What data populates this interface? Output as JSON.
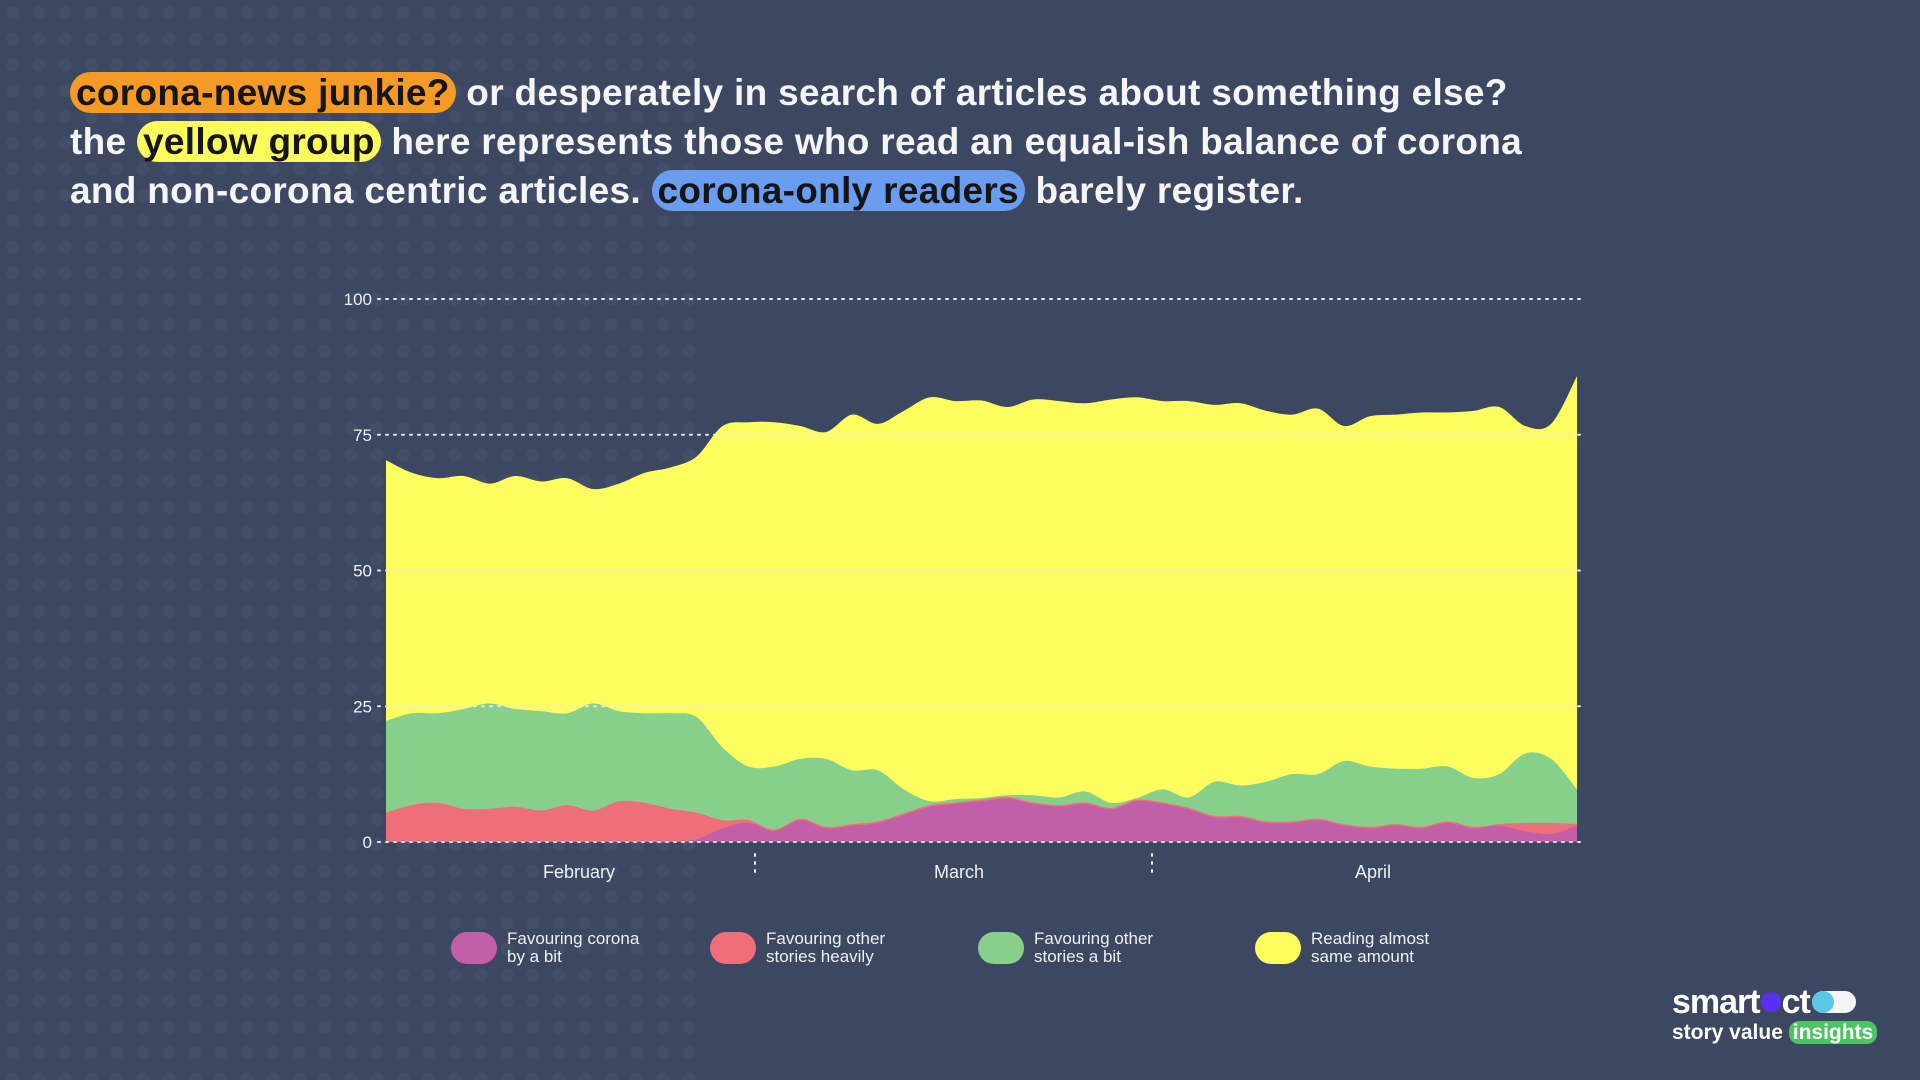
{
  "heading": {
    "line1_highlight": "corona-news junkie?",
    "line1_rest": " or desperately in search of articles about something else?",
    "line2_start": "the ",
    "line2_highlight": "yellow group",
    "line2_rest": " here represents those who read an equal-ish balance of corona",
    "line3_start": "and non-corona centric articles. ",
    "line3_highlight": "corona-only readers",
    "line3_rest": " barely register.",
    "highlight_colors": {
      "orange": "#f59a24",
      "yellow": "#fbfb5c",
      "blue": "#6a9cf0"
    }
  },
  "chart_data": {
    "type": "area",
    "stacked": true,
    "smoothed": true,
    "title": "",
    "xlabel": "",
    "ylabel": "",
    "ylim": [
      0,
      100
    ],
    "yticks": [
      "0",
      "25",
      "50",
      "75",
      "100"
    ],
    "grid": "horizontal dotted",
    "month_labels": [
      "February",
      "March",
      "April"
    ],
    "legend_position": "bottom",
    "x": [
      "Feb 1",
      "Feb 3",
      "Feb 5",
      "Feb 7",
      "Feb 9",
      "Feb 11",
      "Feb 13",
      "Feb 15",
      "Feb 17",
      "Feb 19",
      "Feb 21",
      "Feb 23",
      "Feb 25",
      "Feb 27",
      "Feb 29",
      "Mar 2",
      "Mar 4",
      "Mar 6",
      "Mar 8",
      "Mar 10",
      "Mar 12",
      "Mar 14",
      "Mar 16",
      "Mar 18",
      "Mar 20",
      "Mar 22",
      "Mar 24",
      "Mar 26",
      "Mar 28",
      "Mar 30",
      "Apr 1",
      "Apr 3",
      "Apr 5",
      "Apr 7",
      "Apr 9",
      "Apr 11",
      "Apr 13",
      "Apr 15",
      "Apr 17",
      "Apr 19",
      "Apr 21",
      "Apr 23",
      "Apr 25",
      "Apr 27",
      "Apr 29",
      "May 1",
      "May 3"
    ],
    "series": [
      {
        "name": "Favouring corona by a bit",
        "color": "#c15fa8",
        "values": [
          0,
          0,
          0,
          0,
          0,
          0,
          0,
          0,
          0,
          0,
          0,
          0,
          0.5,
          2.5,
          3.5,
          2.0,
          4.0,
          2.5,
          3.0,
          3.5,
          5.0,
          6.5,
          7.0,
          7.5,
          8.0,
          7.0,
          6.5,
          7.0,
          6.0,
          7.5,
          7.0,
          6.0,
          4.5,
          4.5,
          3.5,
          3.5,
          4.0,
          3.0,
          2.5,
          3.0,
          2.5,
          3.5,
          2.5,
          3.0,
          2.0,
          1.5,
          3.0
        ]
      },
      {
        "name": "Favouring other stories heavily",
        "color": "#ee6f79",
        "values": [
          5.4,
          6.8,
          7.2,
          6.1,
          6.1,
          6.5,
          5.8,
          6.8,
          5.8,
          7.5,
          7.2,
          6.1,
          4.9,
          1.5,
          0.5,
          0.3,
          0.3,
          0.3,
          0.3,
          0.3,
          0.3,
          0.3,
          0.3,
          0.3,
          0.3,
          0.3,
          0.3,
          0.3,
          0.3,
          0.3,
          0.3,
          0.3,
          0.3,
          0.3,
          0.3,
          0.3,
          0.3,
          0.3,
          0.3,
          0.3,
          0.3,
          0.3,
          0.3,
          0.3,
          1.5,
          2.0,
          0.3
        ]
      },
      {
        "name": "Favouring other stories a bit",
        "color": "#86d08c",
        "values": [
          16.9,
          16.9,
          16.5,
          18.4,
          19.4,
          18.0,
          18.3,
          16.9,
          19.7,
          16.6,
          16.5,
          17.6,
          17.6,
          13.4,
          9.9,
          11.6,
          11.0,
          12.5,
          9.9,
          9.4,
          4.4,
          0.7,
          0.6,
          0.3,
          0.3,
          1.3,
          1.4,
          2.0,
          0.9,
          0.3,
          2.4,
          1.9,
          6.3,
          5.6,
          7.3,
          8.7,
          8.2,
          11.6,
          11.1,
          10.2,
          10.7,
          10.1,
          9.0,
          9.2,
          12.8,
          11.8,
          6.4
        ]
      },
      {
        "name": "Reading almost same amount",
        "color": "#fdfd5f",
        "values": [
          48.0,
          44.3,
          43.3,
          42.9,
          40.5,
          42.9,
          42.3,
          43.3,
          39.5,
          41.9,
          44.3,
          45.3,
          48.0,
          59.2,
          63.4,
          63.4,
          61.3,
          60.2,
          65.5,
          63.8,
          69.7,
          74.4,
          73.3,
          73.2,
          71.5,
          72.9,
          73.0,
          71.5,
          74.3,
          73.8,
          71.5,
          73.0,
          69.4,
          70.4,
          68.3,
          66.2,
          67.3,
          61.7,
          64.5,
          65.2,
          65.6,
          65.2,
          67.6,
          67.6,
          60.3,
          61.7,
          76.1
        ]
      }
    ],
    "legend": [
      {
        "line1": "Favouring corona",
        "line2": "by a bit"
      },
      {
        "line1": "Favouring other",
        "line2": "stories heavily"
      },
      {
        "line1": "Favouring other",
        "line2": "stories a bit"
      },
      {
        "line1": "Reading almost",
        "line2": "same amount"
      }
    ]
  },
  "logo": {
    "brand": "smartocto",
    "brand_a": "smart",
    "brand_b": "ct",
    "tagline": "story value",
    "tagline_highlight": "insights"
  }
}
